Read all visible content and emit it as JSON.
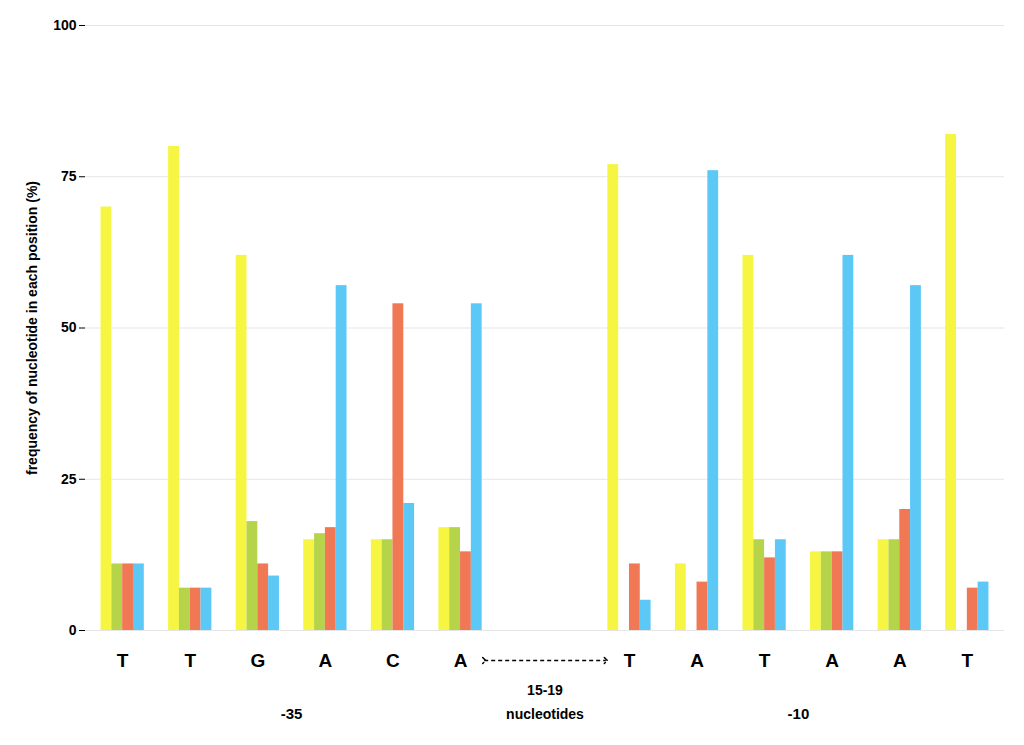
{
  "chart_data": {
    "type": "bar",
    "categories": [
      "T",
      "T",
      "G",
      "A",
      "C",
      "A",
      "T",
      "A",
      "T",
      "A",
      "A",
      "T"
    ],
    "series": [
      {
        "color": "#f5f542",
        "values": [
          70,
          80,
          62,
          15,
          15,
          17,
          77,
          11,
          62,
          13,
          15,
          82
        ]
      },
      {
        "color": "#b5d44a",
        "values": [
          11,
          7,
          18,
          16,
          15,
          17,
          0,
          0,
          15,
          13,
          15,
          0
        ]
      },
      {
        "color": "#f07855",
        "values": [
          11,
          7,
          11,
          17,
          54,
          13,
          11,
          8,
          12,
          13,
          20,
          7
        ]
      },
      {
        "color": "#5bc8f5",
        "values": [
          11,
          7,
          9,
          57,
          21,
          54,
          5,
          76,
          15,
          62,
          57,
          8
        ]
      }
    ],
    "ylabel": "frequency of nucleotide in each position (%)",
    "ylim": [
      0,
      100
    ],
    "yticks": [
      0,
      25,
      50,
      75,
      100
    ],
    "grid": true,
    "annotations": [
      "-35",
      "15-19",
      "nucleotides",
      "-10"
    ]
  }
}
